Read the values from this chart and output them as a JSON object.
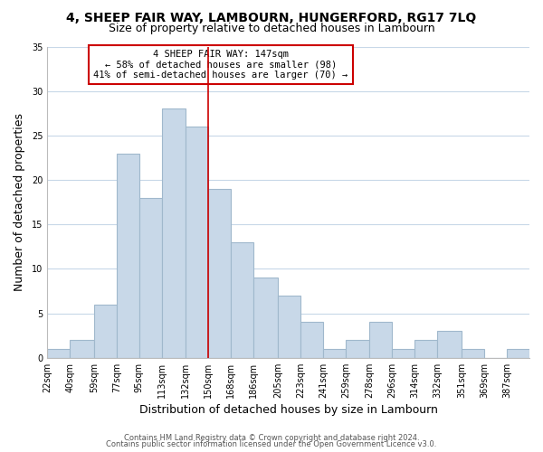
{
  "title": "4, SHEEP FAIR WAY, LAMBOURN, HUNGERFORD, RG17 7LQ",
  "subtitle": "Size of property relative to detached houses in Lambourn",
  "xlabel": "Distribution of detached houses by size in Lambourn",
  "ylabel": "Number of detached properties",
  "footer_lines": [
    "Contains HM Land Registry data © Crown copyright and database right 2024.",
    "Contains public sector information licensed under the Open Government Licence v3.0."
  ],
  "bin_labels": [
    "22sqm",
    "40sqm",
    "59sqm",
    "77sqm",
    "95sqm",
    "113sqm",
    "132sqm",
    "150sqm",
    "168sqm",
    "186sqm",
    "205sqm",
    "223sqm",
    "241sqm",
    "259sqm",
    "278sqm",
    "296sqm",
    "314sqm",
    "332sqm",
    "351sqm",
    "369sqm",
    "387sqm"
  ],
  "bar_heights": [
    1,
    2,
    6,
    23,
    18,
    28,
    26,
    19,
    13,
    9,
    7,
    4,
    1,
    2,
    4,
    1,
    2,
    3,
    1,
    0,
    1
  ],
  "bar_color": "#c8d8e8",
  "bar_edgecolor": "#a0b8cc",
  "property_line_label": "4 SHEEP FAIR WAY: 147sqm",
  "annotation_line1": "← 58% of detached houses are smaller (98)",
  "annotation_line2": "41% of semi-detached houses are larger (70) →",
  "annotation_box_color": "#cc0000",
  "ylim": [
    0,
    35
  ],
  "yticks": [
    0,
    5,
    10,
    15,
    20,
    25,
    30,
    35
  ],
  "bin_edges": [
    22,
    40,
    59,
    77,
    95,
    113,
    132,
    150,
    168,
    186,
    205,
    223,
    241,
    259,
    278,
    296,
    314,
    332,
    351,
    369,
    387,
    405
  ],
  "background_color": "#ffffff",
  "grid_color": "#c8d8e8",
  "title_fontsize": 10,
  "subtitle_fontsize": 9,
  "axis_label_fontsize": 9,
  "tick_fontsize": 7,
  "footer_fontsize": 6
}
